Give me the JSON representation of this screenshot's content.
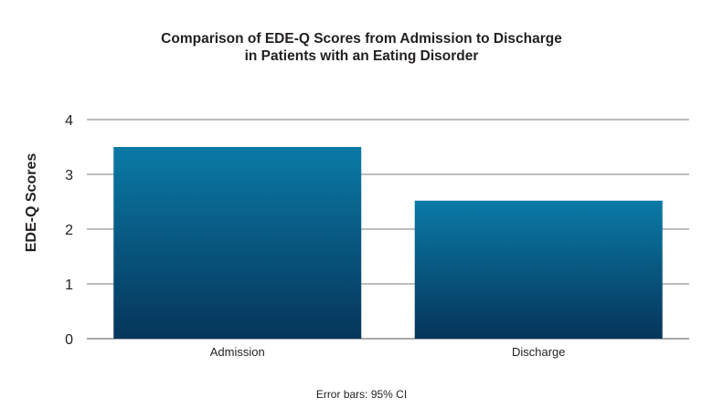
{
  "chart_data": {
    "type": "bar",
    "title_lines": [
      "Comparison of EDE-Q Scores from Admission to Discharge",
      "in Patients with an Eating Disorder"
    ],
    "xlabel": "",
    "ylabel": "EDE-Q Scores",
    "categories": [
      "Admission",
      "Discharge"
    ],
    "values": [
      3.5,
      2.52
    ],
    "ylim": [
      0,
      4
    ],
    "yticks": [
      "0",
      "1",
      "2",
      "3",
      "4"
    ],
    "grid": true,
    "note": "Error bars: 95% CI",
    "colors": {
      "bar_top": "#0a7aa6",
      "bar_bottom": "#06355a",
      "grid": "#a7a9ac",
      "text": "#231f20"
    }
  }
}
